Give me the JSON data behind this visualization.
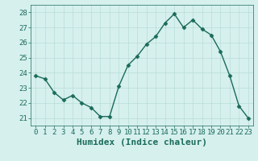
{
  "x": [
    0,
    1,
    2,
    3,
    4,
    5,
    6,
    7,
    8,
    9,
    10,
    11,
    12,
    13,
    14,
    15,
    16,
    17,
    18,
    19,
    20,
    21,
    22,
    23
  ],
  "y": [
    23.8,
    23.6,
    22.7,
    22.2,
    22.5,
    22.0,
    21.7,
    21.1,
    21.1,
    23.1,
    24.5,
    25.1,
    25.9,
    26.4,
    27.3,
    27.9,
    27.0,
    27.5,
    26.9,
    26.5,
    25.4,
    23.8,
    21.8,
    21.0
  ],
  "line_color": "#1a6b5a",
  "marker": "D",
  "marker_size": 2.5,
  "bg_color": "#d6f0ee",
  "grid_color": "#b8dcd8",
  "xlabel": "Humidex (Indice chaleur)",
  "xlabel_fontsize": 8,
  "ylim": [
    20.5,
    28.5
  ],
  "xlim": [
    -0.5,
    23.5
  ],
  "yticks": [
    21,
    22,
    23,
    24,
    25,
    26,
    27,
    28
  ],
  "xticks": [
    0,
    1,
    2,
    3,
    4,
    5,
    6,
    7,
    8,
    9,
    10,
    11,
    12,
    13,
    14,
    15,
    16,
    17,
    18,
    19,
    20,
    21,
    22,
    23
  ],
  "tick_color": "#1a6b5a",
  "tick_fontsize": 6.5,
  "linewidth": 1.0
}
